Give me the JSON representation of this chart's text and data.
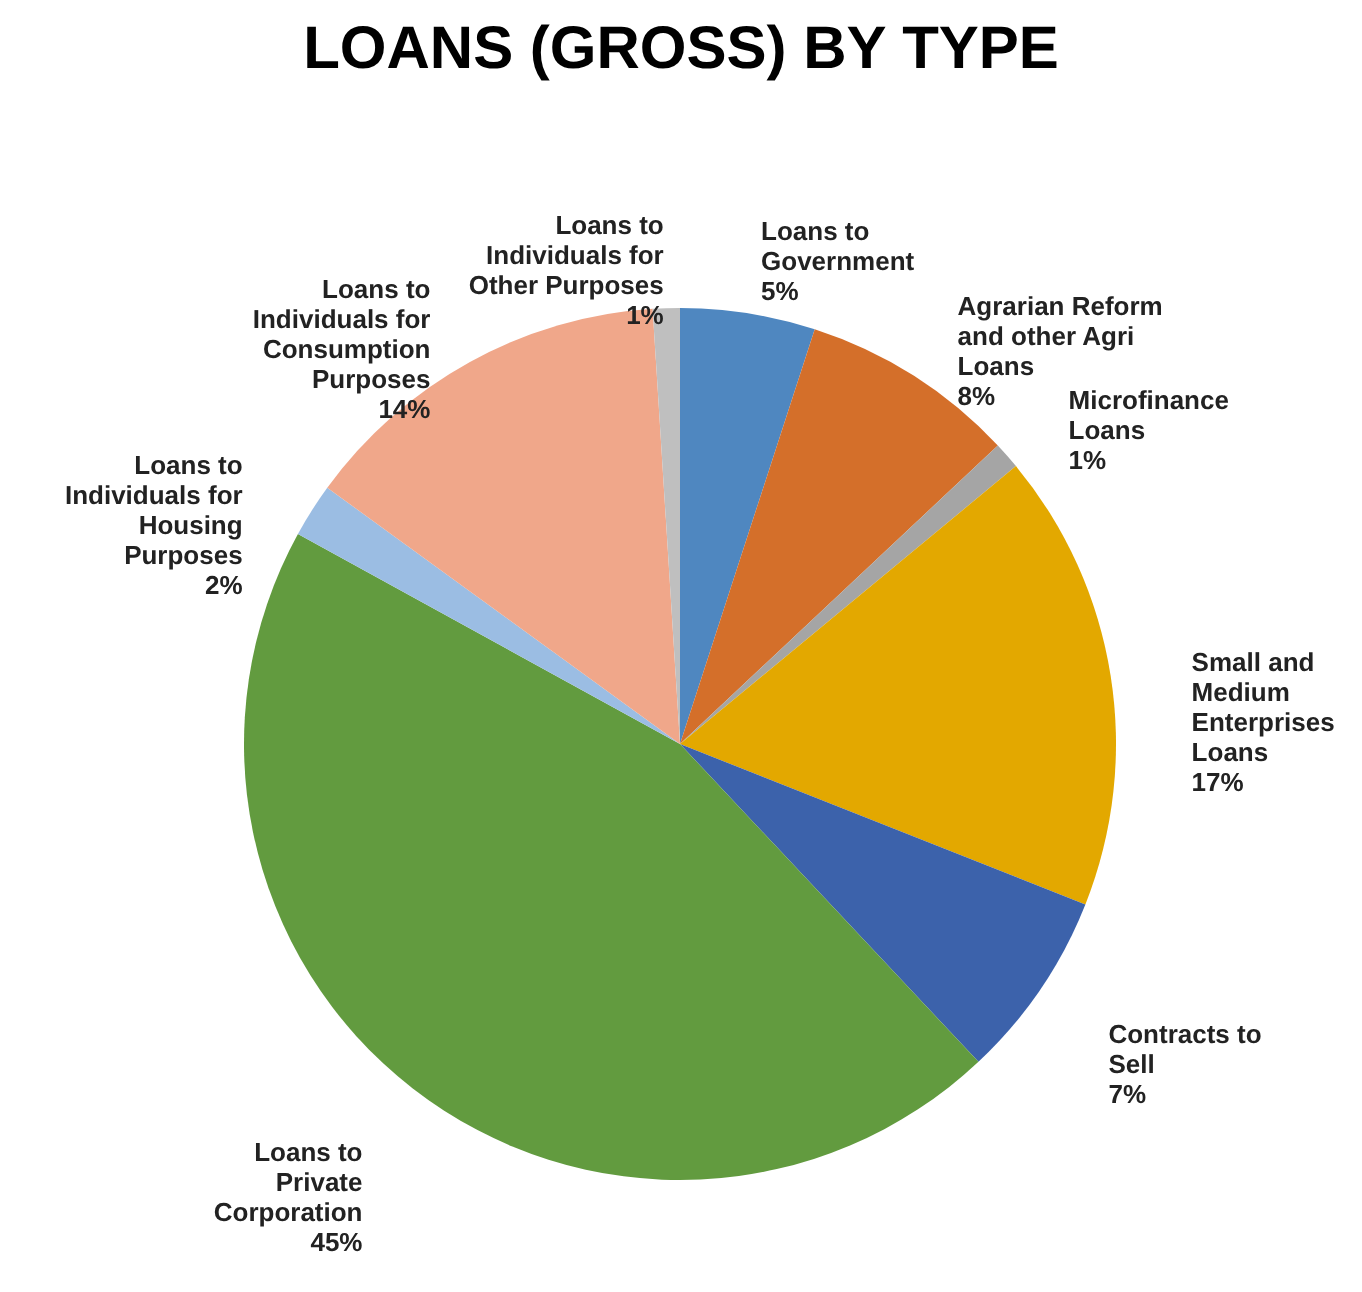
{
  "chart_data": {
    "type": "pie",
    "title": "LOANS (GROSS) BY TYPE",
    "categories": [
      "Loans to Government",
      "Agrarian Reform and other Agri Loans",
      "Microfinance Loans",
      "Small and Medium Enterprises Loans",
      "Contracts to Sell",
      "Loans to Private Corporation",
      "Loans to Individuals for Housing Purposes",
      "Loans to Individuals for Consumption Purposes",
      "Loans to Individuals for Other Purposes"
    ],
    "values": [
      5,
      8,
      1,
      17,
      7,
      45,
      2,
      14,
      1
    ],
    "value_labels": [
      "5%",
      "8%",
      "1%",
      "17%",
      "7%",
      "45%",
      "2%",
      "14%",
      "1%"
    ],
    "colors": [
      "#4f87c0",
      "#d46f2a",
      "#a5a5a5",
      "#e3a800",
      "#3c62ab",
      "#629b3f",
      "#9bbde3",
      "#f0a78a",
      "#bfbfbf"
    ]
  }
}
